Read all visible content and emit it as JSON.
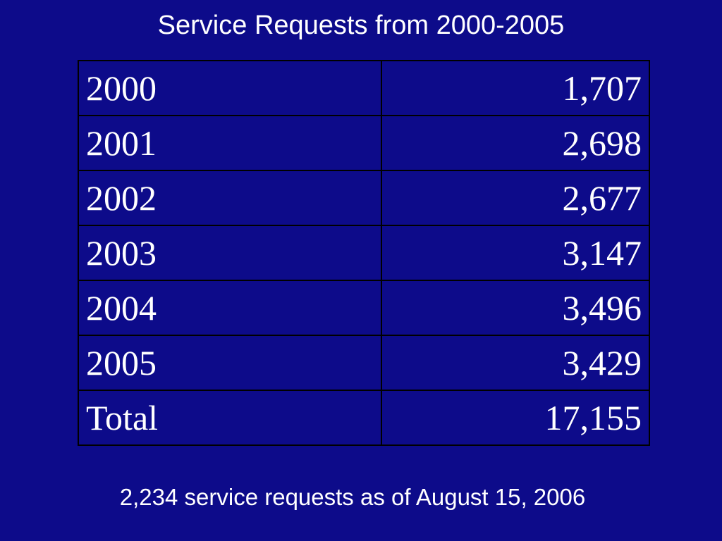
{
  "title": "Service Requests from 2000-2005",
  "table": {
    "rows": [
      [
        "2000",
        "1,707"
      ],
      [
        "2001",
        "2,698"
      ],
      [
        "2002",
        "2,677"
      ],
      [
        "2003",
        "3,147"
      ],
      [
        "2004",
        "3,496"
      ],
      [
        "2005",
        "3,429"
      ],
      [
        "Total",
        "17,155"
      ]
    ]
  },
  "footnote": "2,234 service requests as of August 15, 2006"
}
